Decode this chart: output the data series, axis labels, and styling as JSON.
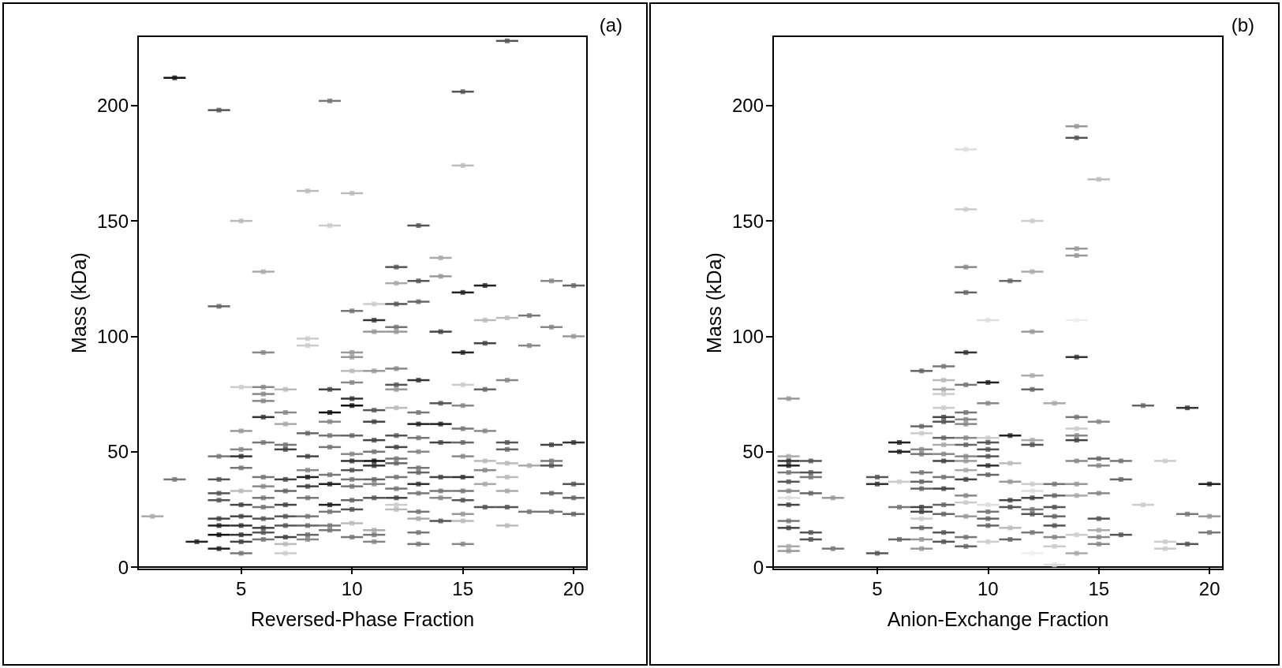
{
  "chart_data": [
    {
      "type": "scatter",
      "xlabel": "Reversed-Phase Fraction",
      "ylabel": "Mass (kDa)",
      "annotations": [
        "(a)"
      ],
      "marker": "square",
      "xerrors": [
        0.5,
        0.5,
        0.5,
        0.5,
        0.5,
        0.5,
        0.5,
        0.5,
        0.5,
        0.5,
        0.5,
        0.5,
        0.5,
        0.5,
        0.5,
        0.5,
        0.5,
        0.5,
        0.5,
        0.5,
        0.5,
        0.5,
        0.5,
        0.5,
        0.5,
        0.5,
        0.5,
        0.5,
        0.5,
        0.5,
        0.5,
        0.5,
        0.5,
        0.5,
        0.5,
        0.5,
        0.5,
        0.5,
        0.5,
        0.5,
        0.5,
        0.5,
        0.5,
        0.5,
        0.5,
        0.5,
        0.5,
        0.5,
        0.5,
        0.5,
        0.5,
        0.5,
        0.5,
        0.5,
        0.5,
        0.5,
        0.5,
        0.5,
        0.5,
        0.5,
        0.5,
        0.5,
        0.5,
        0.5,
        0.5,
        0.5,
        0.5,
        0.5,
        0.5,
        0.5,
        0.5,
        0.5,
        0.5,
        0.5,
        0.5,
        0.5,
        0.5,
        0.5,
        0.5,
        0.5,
        0.5,
        0.5,
        0.5,
        0.5,
        0.5,
        0.5,
        0.5,
        0.5,
        0.5,
        0.5,
        0.5,
        0.5,
        0.5,
        0.5,
        0.5,
        0.5,
        0.5,
        0.5,
        0.5,
        0.5,
        0.5,
        0.5,
        0.5,
        0.5,
        0.5,
        0.5,
        0.5,
        0.5,
        0.5,
        0.5,
        0.5,
        0.5,
        0.5,
        0.5,
        0.5,
        0.5,
        0.5,
        0.5,
        0.5,
        0.5,
        0.5,
        0.5,
        0.5,
        0.5,
        0.5,
        0.5,
        0.5,
        0.5,
        0.5,
        0.5,
        0.5,
        0.5,
        0.5,
        0.5,
        0.5,
        0.5,
        0.5,
        0.5,
        0.5,
        0.5,
        0.5,
        0.5,
        0.5,
        0.5,
        0.5,
        0.5,
        0.5,
        0.5,
        0.5,
        0.5,
        0.5,
        0.5,
        0.5,
        0.5,
        0.5,
        0.5,
        0.5,
        0.5,
        0.5,
        0.5,
        0.5,
        0.5,
        0.5,
        0.5,
        0.5,
        0.5,
        0.5,
        0.5,
        0.5,
        0.5,
        0.5,
        0.5,
        0.5,
        0.5,
        0.5,
        0.5,
        null,
        0.5,
        0.5,
        0.5,
        0.5,
        0.5,
        0.5,
        0.5,
        0.5,
        0.5,
        0.5,
        0.5,
        0.5,
        0.5,
        0.5,
        0.5,
        0.5,
        0.5,
        0.5,
        0.5,
        0.5,
        0.5,
        0.5,
        0.5,
        0.5,
        0.5,
        0.5,
        0.5,
        0.5,
        0.5,
        0.5,
        0.5,
        0.5,
        0.5,
        0.5
      ],
      "xlim": [
        0.35,
        20.6
      ],
      "ylim": [
        -1,
        230
      ],
      "xticks": [
        5,
        10,
        15,
        20
      ],
      "yticks": [
        0,
        50,
        100,
        150,
        200
      ],
      "x": [
        2,
        4,
        9,
        15,
        17,
        15,
        8,
        10,
        5,
        9,
        13,
        14,
        12,
        6,
        12,
        13,
        14,
        16,
        15,
        19,
        20,
        4,
        10,
        11,
        12,
        13,
        11,
        12,
        11,
        12,
        14,
        16,
        17,
        18,
        19,
        20,
        8,
        8,
        16,
        18,
        15,
        6,
        10,
        10,
        12,
        10,
        11,
        13,
        17,
        15,
        16,
        9,
        5,
        6,
        7,
        6,
        6,
        10,
        12,
        12,
        10,
        10,
        14,
        15,
        6,
        7,
        9,
        11,
        12,
        13,
        9,
        11,
        7,
        5,
        8,
        13,
        14,
        15,
        16,
        9,
        10,
        11,
        12,
        13,
        14,
        15,
        17,
        19,
        20,
        6,
        7,
        9,
        5,
        10,
        12,
        13,
        7,
        4,
        5,
        8,
        11,
        17,
        10,
        11,
        12,
        15,
        5,
        11,
        12,
        16,
        17,
        18,
        19,
        19,
        13,
        8,
        10,
        9,
        2,
        4,
        6,
        7,
        8,
        10,
        11,
        12,
        13,
        14,
        15,
        16,
        17,
        20,
        9,
        6,
        7,
        8,
        10,
        11,
        12,
        13,
        14,
        15,
        16,
        17,
        19,
        4,
        4,
        5,
        6,
        8,
        10,
        11,
        12,
        13,
        14,
        15,
        20,
        5,
        7,
        6,
        9,
        10,
        12,
        12,
        16,
        17,
        18,
        19,
        20,
        1,
        4,
        5,
        6,
        7,
        8,
        9,
        10,
        13,
        14,
        15,
        13,
        15,
        4,
        5,
        6,
        7,
        8,
        9,
        10,
        17,
        4,
        5,
        6,
        7,
        8,
        9,
        10,
        11,
        11,
        13,
        3,
        5,
        6,
        7,
        8,
        11,
        13,
        15,
        4,
        5,
        7
      ],
      "values": [
        212,
        198,
        202,
        206,
        228,
        174,
        163,
        162,
        150,
        148,
        148,
        134,
        130,
        128,
        123,
        124,
        126,
        122,
        119,
        124,
        122,
        113,
        111,
        114,
        114,
        115,
        107,
        104,
        102,
        102,
        102,
        107,
        108,
        109,
        104,
        100,
        99,
        96,
        97,
        96,
        93,
        93,
        93,
        91,
        86,
        85,
        85,
        81,
        81,
        79,
        77,
        77,
        78,
        78,
        77,
        75,
        72,
        80,
        79,
        77,
        73,
        70,
        71,
        70,
        65,
        67,
        67,
        68,
        69,
        67,
        63,
        63,
        62,
        59,
        58,
        62,
        62,
        60,
        59,
        57,
        57,
        55,
        57,
        56,
        54,
        54,
        54,
        53,
        54,
        54,
        53,
        52,
        51,
        49,
        52,
        50,
        51,
        48,
        48,
        48,
        50,
        51,
        46,
        46,
        47,
        48,
        43,
        44,
        45,
        46,
        45,
        44,
        46,
        44,
        43,
        42,
        42,
        40,
        38,
        38,
        39,
        38,
        39,
        38,
        38,
        39,
        41,
        39,
        39,
        42,
        39,
        36,
        36,
        35,
        33,
        35,
        35,
        36,
        34,
        36,
        33,
        33,
        36,
        33,
        32,
        32,
        29,
        33,
        30,
        30,
        29,
        30,
        30,
        32,
        30,
        29,
        30,
        27,
        27,
        26,
        27,
        25,
        27,
        25,
        26,
        26,
        24,
        24,
        23,
        22,
        21,
        22,
        21,
        22,
        22,
        24,
        null,
        21,
        20,
        23,
        24,
        20,
        18,
        18,
        17,
        18,
        18,
        18,
        19,
        18,
        14,
        14,
        15,
        13,
        14,
        16,
        13,
        14,
        16,
        15,
        11,
        11,
        12,
        10,
        12,
        11,
        10,
        10,
        8,
        6,
        6
      ],
      "colors": [
        "#111111",
        "#555555",
        "#777777",
        "#555555",
        "#555555",
        "#bbbbbb",
        "#bbbbbb",
        "#bbbbbb",
        "#bbbbbb",
        "#cccccc",
        "#555555",
        "#aaaaaa",
        "#555555",
        "#aaaaaa",
        "#aaaaaa",
        "#555555",
        "#999999",
        "#222222",
        "#222222",
        "#888888",
        "#666666",
        "#666666",
        "#777777",
        "#cccccc",
        "#555555",
        "#666666",
        "#333333",
        "#777777",
        "#999999",
        "#999999",
        "#444444",
        "#bbbbbb",
        "#bbbbbb",
        "#777777",
        "#888888",
        "#999999",
        "#cccccc",
        "#cccccc",
        "#444444",
        "#888888",
        "#222222",
        "#888888",
        "#999999",
        "#999999",
        "#888888",
        "#bbbbbb",
        "#999999",
        "#333333",
        "#888888",
        "#cccccc",
        "#666666",
        "#444444",
        "#cccccc",
        "#888888",
        "#bbbbbb",
        "#888888",
        "#888888",
        "#888888",
        "#555555",
        "#999999",
        "#333333",
        "#111111",
        "#555555",
        "#888888",
        "#333333",
        "#888888",
        "#111111",
        "#555555",
        "#bbbbbb",
        "#777777",
        "#888888",
        "#444444",
        "#aaaaaa",
        "#999999",
        "#666666",
        "#222222",
        "#222222",
        "#777777",
        "#888888",
        "#777777",
        "#666666",
        "#444444",
        "#555555",
        "#777777",
        "#444444",
        "#666666",
        "#555555",
        "#444444",
        "#333333",
        "#777777",
        "#777777",
        "#777777",
        "#888888",
        "#888888",
        "#444444",
        "#888888",
        "#444444",
        "#777777",
        "#333333",
        "#444444",
        "#777777",
        "#666666",
        "#333333",
        "#111111",
        "#777777",
        "#888888",
        "#777777",
        "#333333",
        "#666666",
        "#bbbbbb",
        "#bbbbbb",
        "#aaaaaa",
        "#777777",
        "#555555",
        "#777777",
        "#888888",
        "#555555",
        "#777777",
        "#777777",
        "#555555",
        "#777777",
        "#444444",
        "#222222",
        "#777777",
        "#666666",
        "#777777",
        "#666666",
        "#444444",
        "#333333",
        "#888888",
        "#bbbbbb",
        "#555555",
        "#222222",
        "#888888",
        "#666666",
        "#444444",
        "#777777",
        "#888888",
        "#777777",
        "#333333",
        "#777777",
        "#777777",
        "#aaaaaa",
        "#aaaaaa",
        "#666666",
        "#555555",
        "#555555",
        "#bbbbbb",
        "#777777",
        "#777777",
        "#666666",
        "#555555",
        "#444444",
        "#777777",
        "#888888",
        "#555555",
        "#666666",
        "#444444",
        "#444444",
        "#777777",
        "#222222",
        "#555555",
        "#cccccc",
        "#bbbbbb",
        "#555555",
        "#555555",
        "#777777",
        "#777777",
        "#666666",
        "#aaaaaa",
        "#444444",
        "#444444",
        "#555555",
        "#555555",
        "#777777",
        "#777777",
        "#555555",
        "#aaaaaa",
        "#555555",
        "#999999",
        "#777777",
        "#bbbbbb",
        "#222222",
        "#333333",
        "#444444",
        "#555555",
        "#666666",
        "#777777",
        "#bbbbbb",
        "#bbbbbb",
        "#111111",
        "#333333",
        "#555555",
        "#444444",
        "#666666",
        "#777777",
        "#777777",
        "#777777",
        "#aaaaaa",
        "#777777",
        "#222222",
        "#444444",
        "#777777",
        "#bbbbbb",
        "#888888",
        "#888888",
        "#777777",
        "#888888",
        "#222222",
        "#777777",
        "#cccccc"
      ]
    },
    {
      "type": "scatter",
      "xlabel": "Anion-Exchange Fraction",
      "ylabel": "Mass (kDa)",
      "annotations": [
        "(b)"
      ],
      "marker": "square",
      "xerrors": [
        0.5,
        0.5,
        0.5,
        0.5,
        0.5,
        0.5,
        0.5,
        0.5,
        0.5,
        0.5,
        0.5,
        0.5,
        0.5,
        0.5,
        0.5,
        0.5,
        0.5,
        0.5,
        0.5,
        0.5,
        0.5,
        0.5,
        0.5,
        0.5,
        0.5,
        0.5,
        0.5,
        0.5,
        0.5,
        0.5,
        0.5,
        0.5,
        0.5,
        0.5,
        0.5,
        0.5,
        0.5,
        0.5,
        0.5,
        0.5,
        0.5,
        0.5,
        0.5,
        0.5,
        0.5,
        0.5,
        0.5,
        0.5,
        0.5,
        0.5,
        0.5,
        0.5,
        0.5,
        0.5,
        0.5,
        0.5,
        0.5,
        0.5,
        0.5,
        0.5,
        0.5,
        0.5,
        0.5,
        0.5,
        0.5,
        0.5,
        0.5,
        0.5,
        0.5,
        0.5,
        0.5,
        0.5,
        0.5,
        0.5,
        0.5,
        0.5,
        0.5,
        0.5,
        0.5,
        0.5,
        0.5,
        0.5,
        0.5,
        0.5,
        0.5,
        0.5,
        0.5,
        0.5,
        0.5,
        0.5,
        0.5,
        0.5,
        0.5,
        0.5,
        0.5,
        0.5,
        0.5,
        0.5,
        0.5,
        0.5,
        0.5,
        0.5,
        0.5,
        0.5,
        0.5,
        0.5,
        0.5,
        0.5,
        0.5,
        0.5,
        0.5,
        0.5,
        0.5,
        0.5,
        0.5,
        0.5,
        0.5,
        0.5,
        0.5,
        0.5,
        0.5,
        0.5,
        0.5,
        0.5,
        0.5,
        0.5,
        0.5,
        0.5,
        0.5,
        0.5,
        0.5,
        0.5,
        0.5,
        0.5,
        0.5,
        0.5,
        0.5,
        0.5,
        0.5,
        0.5,
        0.5,
        0.5,
        0.5,
        0.5,
        0.5,
        0.5,
        0.5,
        0.5,
        0.5,
        0.5,
        0.5,
        0.5,
        0.5,
        0.5,
        0.5,
        0.5,
        0.5,
        0.5,
        0.5,
        0.5,
        0.5,
        0.5,
        0.5
      ],
      "xlim": [
        0.3,
        20.6
      ],
      "ylim": [
        -1,
        230
      ],
      "xticks": [
        5,
        10,
        15,
        20
      ],
      "yticks": [
        0,
        50,
        100,
        150,
        200
      ],
      "x": [
        9,
        9,
        9,
        9,
        11,
        12,
        12,
        14,
        14,
        14,
        14,
        15,
        10,
        12,
        14,
        9,
        14,
        7,
        8,
        8,
        9,
        10,
        12,
        12,
        1,
        8,
        8,
        8,
        9,
        8,
        10,
        13,
        17,
        19,
        9,
        14,
        15,
        7,
        8,
        9,
        14,
        7,
        8,
        9,
        10,
        11,
        12,
        12,
        14,
        14,
        6,
        7,
        8,
        9,
        10,
        6,
        7,
        8,
        9,
        10,
        10,
        1,
        1,
        2,
        1,
        11,
        14,
        15,
        15,
        16,
        18,
        8,
        9,
        10,
        1,
        2,
        2,
        1,
        5,
        5,
        7,
        7,
        8,
        8,
        9,
        9,
        10,
        11,
        12,
        13,
        14,
        16,
        20,
        1,
        6,
        7,
        12,
        13,
        15,
        2,
        3,
        1,
        1,
        9,
        11,
        12,
        14,
        17,
        6,
        7,
        7,
        8,
        9,
        10,
        11,
        12,
        12,
        13,
        13,
        8,
        9,
        10,
        10,
        15,
        19,
        20,
        1,
        7,
        1,
        7,
        10,
        11,
        13,
        15,
        2,
        8,
        12,
        20,
        6,
        7,
        8,
        9,
        11,
        13,
        14,
        15,
        16,
        2,
        1,
        1,
        3,
        5,
        7,
        9,
        10,
        13,
        14,
        15,
        18,
        18,
        19,
        13,
        12
      ],
      "values": [
        181,
        155,
        130,
        119,
        124,
        150,
        128,
        191,
        186,
        138,
        135,
        168,
        107,
        102,
        107,
        93,
        91,
        85,
        87,
        81,
        79,
        80,
        83,
        77,
        73,
        77,
        75,
        69,
        67,
        65,
        71,
        71,
        70,
        69,
        64,
        65,
        63,
        61,
        63,
        62,
        60,
        58,
        56,
        56,
        56,
        57,
        55,
        53,
        57,
        55,
        54,
        51,
        53,
        53,
        54,
        50,
        49,
        49,
        48,
        51,
        48,
        48,
        46,
        46,
        44,
        45,
        46,
        47,
        44,
        46,
        46,
        46,
        46,
        44,
        41,
        41,
        39,
        37,
        39,
        36,
        41,
        37,
        39,
        34,
        42,
        38,
        40,
        37,
        36,
        36,
        36,
        38,
        36,
        33,
        37,
        34,
        33,
        31,
        32,
        32,
        30,
        30,
        27,
        31,
        29,
        30,
        31,
        27,
        26,
        26,
        24,
        27,
        28,
        27,
        26,
        25,
        23,
        26,
        22,
        23,
        22,
        24,
        21,
        21,
        23,
        22,
        20,
        21,
        17,
        17,
        18,
        17,
        18,
        16,
        15,
        15,
        15,
        15,
        12,
        12,
        11,
        13,
        12,
        13,
        14,
        13,
        14,
        12,
        9,
        7,
        8,
        6,
        8,
        9,
        11,
        9,
        6,
        10,
        11,
        8,
        10,
        1,
        6
      ],
      "colors": [
        "#dddddd",
        "#cccccc",
        "#888888",
        "#666666",
        "#666666",
        "#cccccc",
        "#aaaaaa",
        "#999999",
        "#555555",
        "#999999",
        "#999999",
        "#bbbbbb",
        "#dddddd",
        "#999999",
        "#eeeeee",
        "#333333",
        "#333333",
        "#666666",
        "#777777",
        "#bbbbbb",
        "#777777",
        "#222222",
        "#aaaaaa",
        "#666666",
        "#999999",
        "#aaaaaa",
        "#cccccc",
        "#cccccc",
        "#777777",
        "#444444",
        "#888888",
        "#aaaaaa",
        "#666666",
        "#333333",
        "#888888",
        "#777777",
        "#888888",
        "#666666",
        "#555555",
        "#888888",
        "#cccccc",
        "#cccccc",
        "#666666",
        "#888888",
        "#cccccc",
        "#222222",
        "#aaaaaa",
        "#555555",
        "#888888",
        "#444444",
        "#222222",
        "#888888",
        "#aaaaaa",
        "#666666",
        "#555555",
        "#222222",
        "#777777",
        "#888888",
        "#888888",
        "#555555",
        "#555555",
        "#aaaaaa",
        "#333333",
        "#555555",
        "#222222",
        "#bbbbbb",
        "#888888",
        "#666666",
        "#888888",
        "#777777",
        "#cccccc",
        "#444444",
        "#999999",
        "#333333",
        "#777777",
        "#555555",
        "#777777",
        "#555555",
        "#555555",
        "#333333",
        "#777777",
        "#666666",
        "#777777",
        "#444444",
        "#aaaaaa",
        "#444444",
        "#666666",
        "#999999",
        "#cccccc",
        "#777777",
        "#999999",
        "#666666",
        "#222222",
        "#888888",
        "#cccccc",
        "#666666",
        "#dddddd",
        "#666666",
        "#888888",
        "#666666",
        "#999999",
        "#dddddd",
        "#444444",
        "#888888",
        "#444444",
        "#444444",
        "#aaaaaa",
        "#cccccc",
        "#777777",
        "#444444",
        "#444444",
        "#666666",
        "#cccccc",
        "#dddddd",
        "#555555",
        "#777777",
        "#555555",
        "#555555",
        "#666666",
        "#666666",
        "#999999",
        "#777777",
        "#666666",
        "#555555",
        "#777777",
        "#999999",
        "#777777",
        "#cccccc",
        "#444444",
        "#666666",
        "#666666",
        "#bbbbbb",
        "#555555",
        "#aaaaaa",
        "#555555",
        "#555555",
        "#777777",
        "#777777",
        "#666666",
        "#999999",
        "#555555",
        "#777777",
        "#666666",
        "#888888",
        "#cccccc",
        "#888888",
        "#555555",
        "#555555",
        "#aaaaaa",
        "#999999",
        "#777777",
        "#555555",
        "#999999",
        "#666666",
        "#cccccc",
        "#cccccc",
        "#aaaaaa",
        "#888888",
        "#cccccc",
        "#cccccc",
        "#555555",
        "#dddddd",
        "#eeeeee"
      ]
    }
  ]
}
